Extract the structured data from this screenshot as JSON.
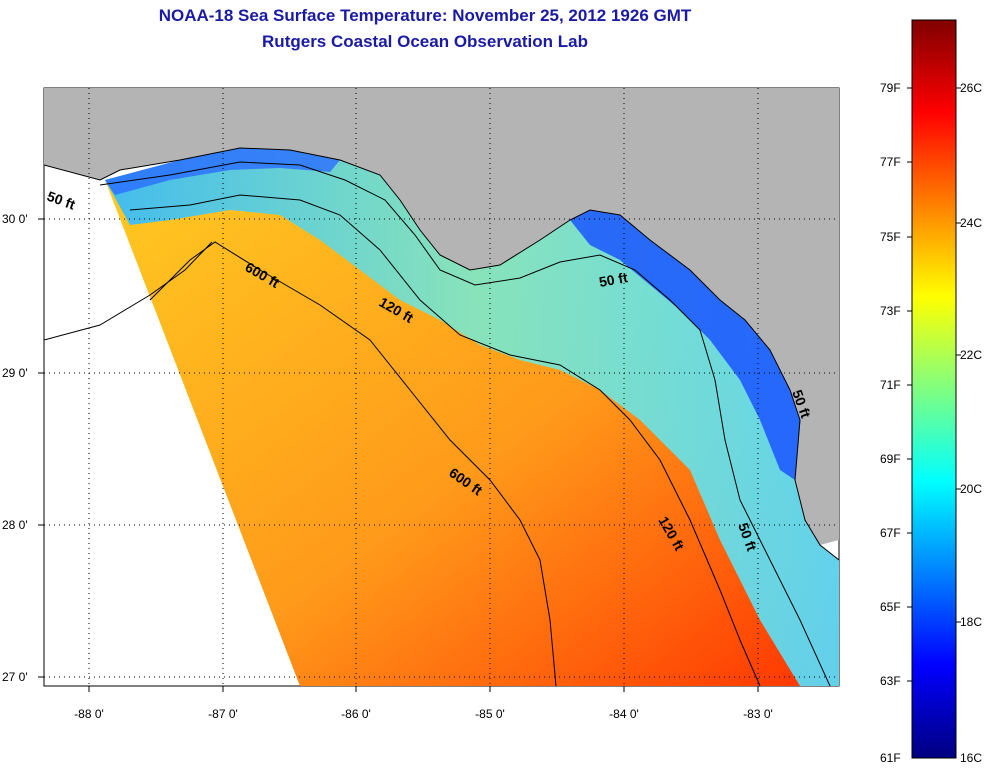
{
  "title": "NOAA-18 Sea Surface Temperature:  November 25, 2012 1926 GMT",
  "subtitle": "Rutgers Coastal Ocean Observation Lab",
  "map": {
    "lon_ticks": [
      "-88 0'",
      "-87 0'",
      "-86 0'",
      "-85 0'",
      "-84 0'",
      "-83 0'"
    ],
    "lat_ticks": [
      "30 0'",
      "29 0'",
      "28 0'",
      "27 0'"
    ],
    "contour_labels": [
      "50 ft",
      "600 ft",
      "120 ft",
      "50 ft",
      "600 ft",
      "120 ft",
      "50 ft",
      "50 ft"
    ]
  },
  "colorbar": {
    "fahrenheit": [
      "79F",
      "77F",
      "75F",
      "73F",
      "71F",
      "69F",
      "67F",
      "65F",
      "63F",
      "61F"
    ],
    "celsius": [
      "26C",
      "24C",
      "22C",
      "20C",
      "18C",
      "16C"
    ],
    "colors": [
      "#000080",
      "#0000ff",
      "#0080ff",
      "#00ffff",
      "#80ff80",
      "#ffff00",
      "#ff8000",
      "#ff0000",
      "#800000"
    ]
  }
}
